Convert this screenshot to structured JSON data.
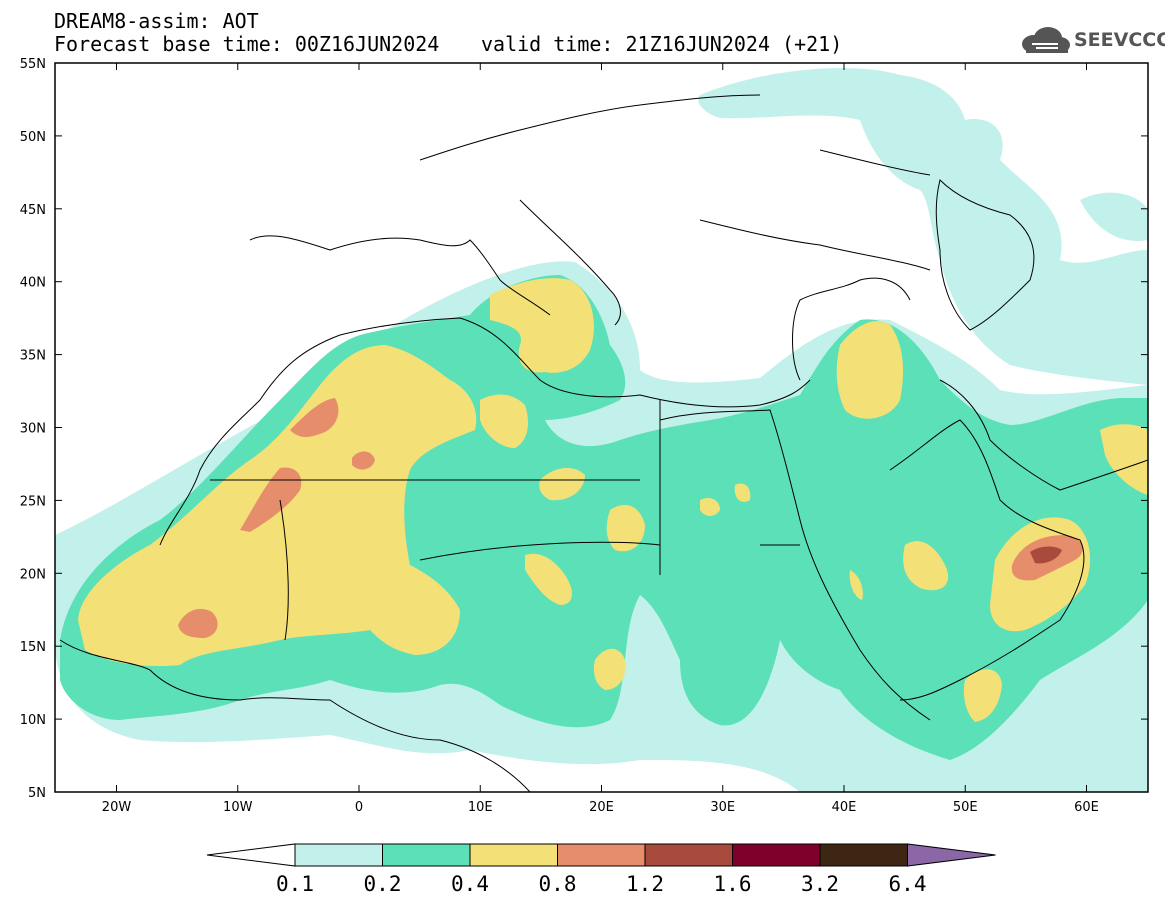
{
  "header": {
    "title": "DREAM8-assim: AOT",
    "base_time": "Forecast base time: 00Z16JUN2024",
    "valid_time": "valid time: 21Z16JUN2024 (+21)"
  },
  "logo": {
    "text": "SEEVCCC",
    "icon": "cloud-icon"
  },
  "map": {
    "lat_labels": [
      "55N",
      "50N",
      "45N",
      "40N",
      "35N",
      "30N",
      "25N",
      "20N",
      "15N",
      "10N",
      "5N"
    ],
    "lon_labels": [
      "20W",
      "10W",
      "0",
      "10E",
      "20E",
      "30E",
      "40E",
      "50E",
      "60E"
    ],
    "colors": {
      "level_0_1": "#c2f0ea",
      "level_0_2": "#5ce0b8",
      "level_0_4": "#f3e177",
      "level_0_8": "#e68d6c",
      "level_1_2": "#a84a3c",
      "level_1_6": "#80002c",
      "level_3_2": "#3d2714",
      "level_6_4": "#8b67a8"
    }
  },
  "colorbar": {
    "labels": [
      "0.1",
      "0.2",
      "0.4",
      "0.8",
      "1.2",
      "1.6",
      "3.2",
      "6.4"
    ],
    "colors": [
      "#ffffff",
      "#c2f0ea",
      "#5ce0b8",
      "#f3e177",
      "#e68d6c",
      "#a84a3c",
      "#80002c",
      "#3d2714",
      "#8b67a8"
    ]
  }
}
